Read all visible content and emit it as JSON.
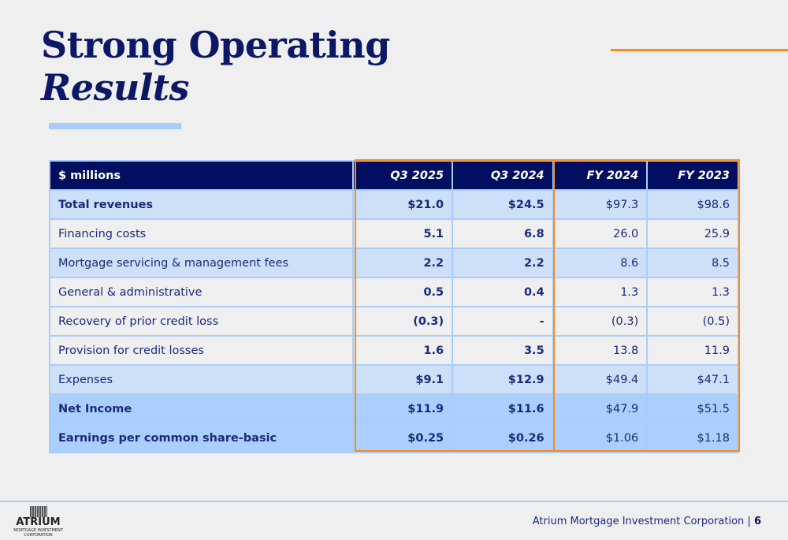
{
  "title": {
    "line1": "Strong Operating",
    "line2": "Results"
  },
  "table": {
    "headers": [
      "$ millions",
      "Q3 2025",
      "Q3 2024",
      "FY 2024",
      "FY 2023"
    ],
    "rows": [
      {
        "style": "light hl",
        "cells": [
          "Total revenues",
          "$21.0",
          "$24.5",
          "$97.3",
          "$98.6"
        ]
      },
      {
        "style": "plain",
        "cells": [
          "Financing costs",
          "5.1",
          "6.8",
          "26.0",
          "25.9"
        ]
      },
      {
        "style": "light",
        "cells": [
          "Mortgage servicing & management fees",
          "2.2",
          "2.2",
          "8.6",
          "8.5"
        ]
      },
      {
        "style": "plain",
        "cells": [
          "General & administrative",
          "0.5",
          "0.4",
          "1.3",
          "1.3"
        ]
      },
      {
        "style": "plain",
        "cells": [
          "Recovery of prior credit loss",
          "(0.3)",
          "-",
          "(0.3)",
          "(0.5)"
        ]
      },
      {
        "style": "plain",
        "cells": [
          "Provision for credit losses",
          "1.6",
          "3.5",
          "13.8",
          "11.9"
        ]
      },
      {
        "style": "light",
        "cells": [
          "Expenses",
          "$9.1",
          "$12.9",
          "$49.4",
          "$47.1"
        ]
      },
      {
        "style": "strong hl",
        "cells": [
          "Net Income",
          "$11.9",
          "$11.6",
          "$47.9",
          "$51.5"
        ]
      },
      {
        "style": "strong hl",
        "cells": [
          "Earnings per common share-basic",
          "$0.25",
          "$0.26",
          "$1.06",
          "$1.18"
        ]
      }
    ]
  },
  "footer": {
    "company": "Atrium Mortgage Investment Corporation",
    "separator": "|",
    "page": "6",
    "logo": {
      "name": "ATRIUM",
      "sub": "MORTGAGE INVESTMENT CORPORATION"
    }
  },
  "colors": {
    "navy": "#020f60",
    "orange": "#f58a1f",
    "light_blue": "#a9cdfb"
  }
}
